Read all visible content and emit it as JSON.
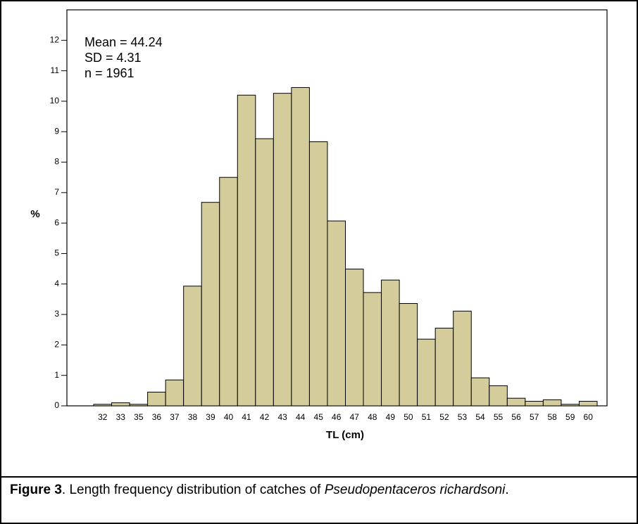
{
  "chart_data": {
    "type": "bar",
    "xlabel": "TL (cm)",
    "ylabel": "%",
    "annotations": [
      "Mean = 44.24",
      "SD = 4.31",
      "n = 1961"
    ],
    "categories": [
      "32",
      "33",
      "35",
      "36",
      "37",
      "38",
      "39",
      "40",
      "41",
      "42",
      "43",
      "44",
      "45",
      "46",
      "47",
      "48",
      "49",
      "50",
      "51",
      "52",
      "53",
      "54",
      "55",
      "56",
      "57",
      "58",
      "59",
      "60"
    ],
    "values": [
      0.05,
      0.1,
      0.05,
      0.45,
      0.85,
      3.93,
      6.68,
      7.5,
      10.2,
      8.77,
      10.26,
      10.45,
      8.67,
      6.07,
      4.49,
      3.72,
      4.13,
      3.36,
      2.19,
      2.55,
      3.11,
      0.92,
      0.66,
      0.25,
      0.15,
      0.2,
      0.05,
      0.15
    ],
    "color": "#d4cd9b",
    "ylim": [
      0,
      13
    ],
    "yticks": [
      0,
      1,
      2,
      3,
      4,
      5,
      6,
      7,
      8,
      9,
      10,
      11,
      12
    ],
    "grid": false
  },
  "caption": {
    "label": "Figure 3",
    "text": ". Length frequency distribution of catches of ",
    "species": "Pseudopentaceros richardsoni",
    "end": "."
  }
}
